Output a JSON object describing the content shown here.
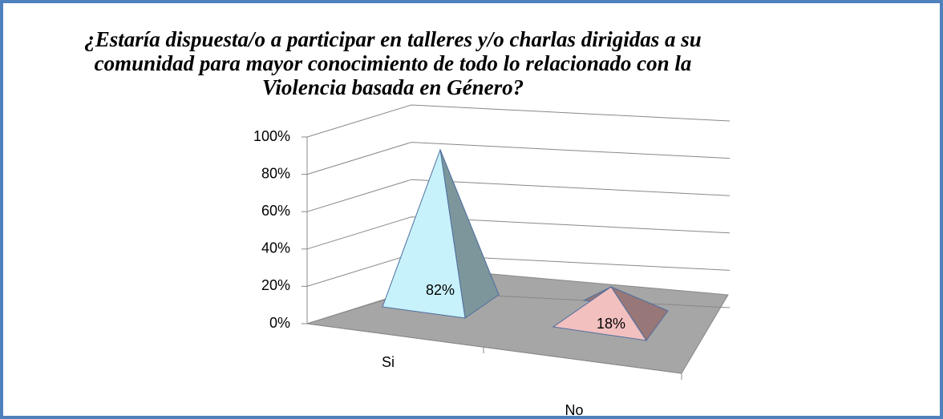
{
  "chart_data": {
    "type": "pyramid3d",
    "title": "¿Estaría dispuesta/o a participar en talleres y/o charlas dirigidas a su comunidad para mayor conocimiento de todo lo relacionado con la Violencia basada en Género?",
    "categories": [
      "Si",
      "No"
    ],
    "values": [
      82,
      18
    ],
    "value_labels": [
      "82%",
      "18%"
    ],
    "colors": [
      "#c8f2fb",
      "#f3c0c0"
    ],
    "ylim": [
      0,
      100
    ],
    "yticks": [
      {
        "value": 0,
        "label": "0%"
      },
      {
        "value": 20,
        "label": "20%"
      },
      {
        "value": 40,
        "label": "40%"
      },
      {
        "value": 60,
        "label": "60%"
      },
      {
        "value": 80,
        "label": "80%"
      },
      {
        "value": 100,
        "label": "100%"
      }
    ],
    "grid": true
  }
}
